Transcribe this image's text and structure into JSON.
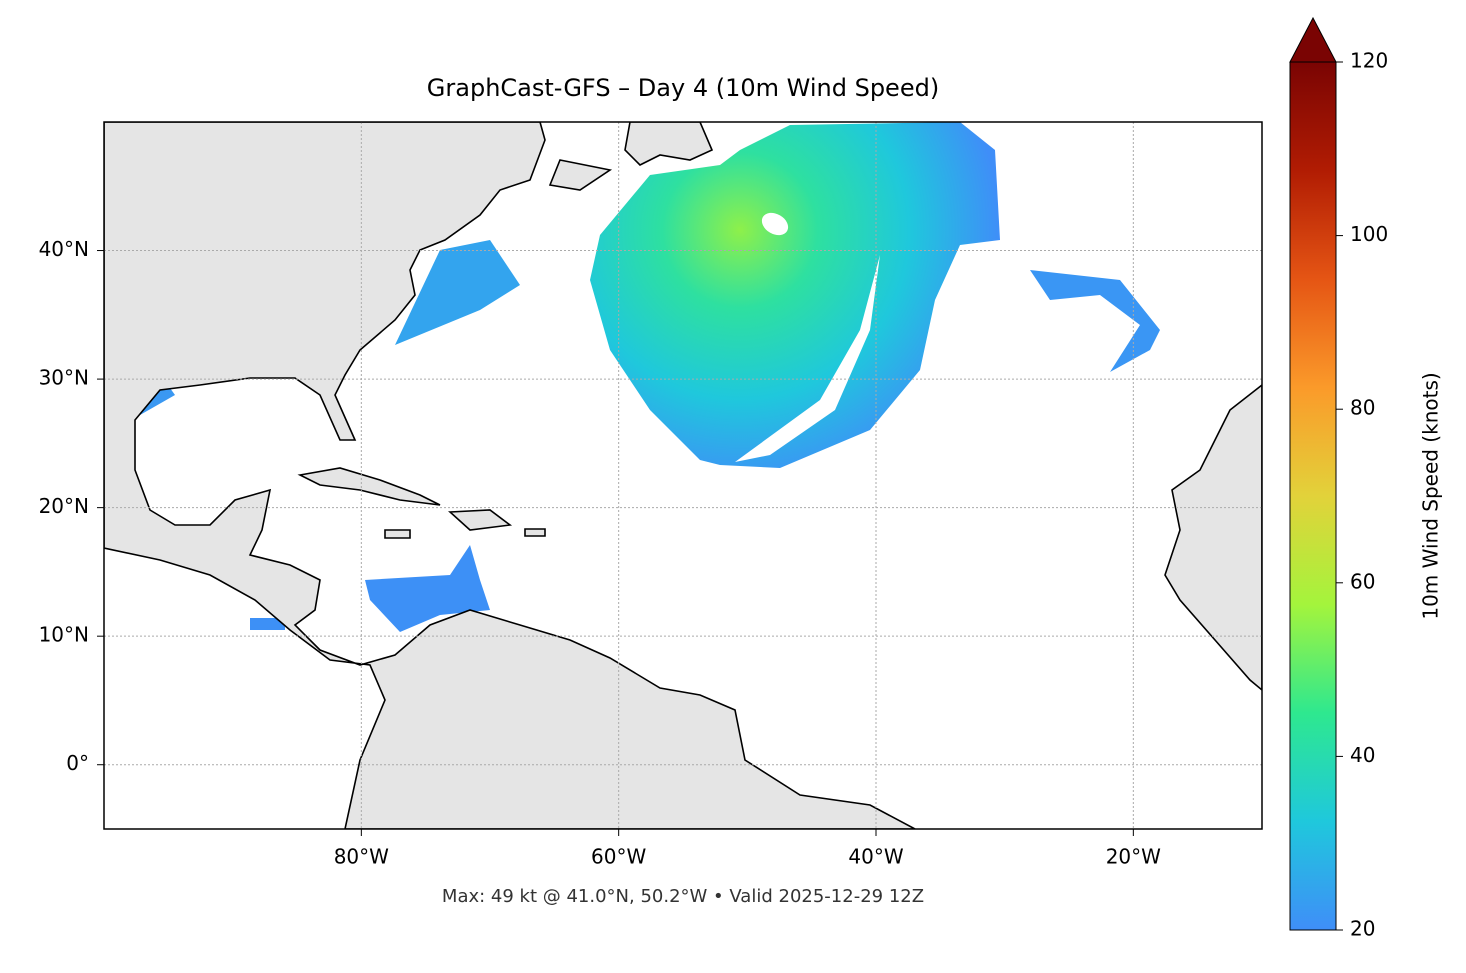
{
  "chart_data": {
    "type": "map",
    "title": "GraphCast-GFS – Day 4 (10m Wind Speed)",
    "footnote": "Max: 49 kt @ 41.0°N, 50.2°W • Valid 2025-12-29 12Z",
    "xlim": [
      -100,
      -10
    ],
    "ylim": [
      -5,
      50
    ],
    "xticks": [
      {
        "value": -80,
        "label": "80°W"
      },
      {
        "value": -60,
        "label": "60°W"
      },
      {
        "value": -40,
        "label": "40°W"
      },
      {
        "value": -20,
        "label": "20°W"
      }
    ],
    "yticks": [
      {
        "value": 0,
        "label": "0°"
      },
      {
        "value": 10,
        "label": "10°N"
      },
      {
        "value": 20,
        "label": "20°N"
      },
      {
        "value": 30,
        "label": "30°N"
      },
      {
        "value": 40,
        "label": "40°N"
      }
    ],
    "grid": true,
    "colorbar": {
      "label": "10m Wind Speed (knots)",
      "lim": [
        20,
        120
      ],
      "ticks": [
        20,
        40,
        60,
        80,
        100,
        120
      ],
      "extend": "max",
      "colors": [
        "#3f8ef8",
        "#1fc8dc",
        "#2ee88f",
        "#a4f43c",
        "#e2d23a",
        "#fb9a2a",
        "#e55514",
        "#b11c03",
        "#7a0403"
      ]
    }
  }
}
